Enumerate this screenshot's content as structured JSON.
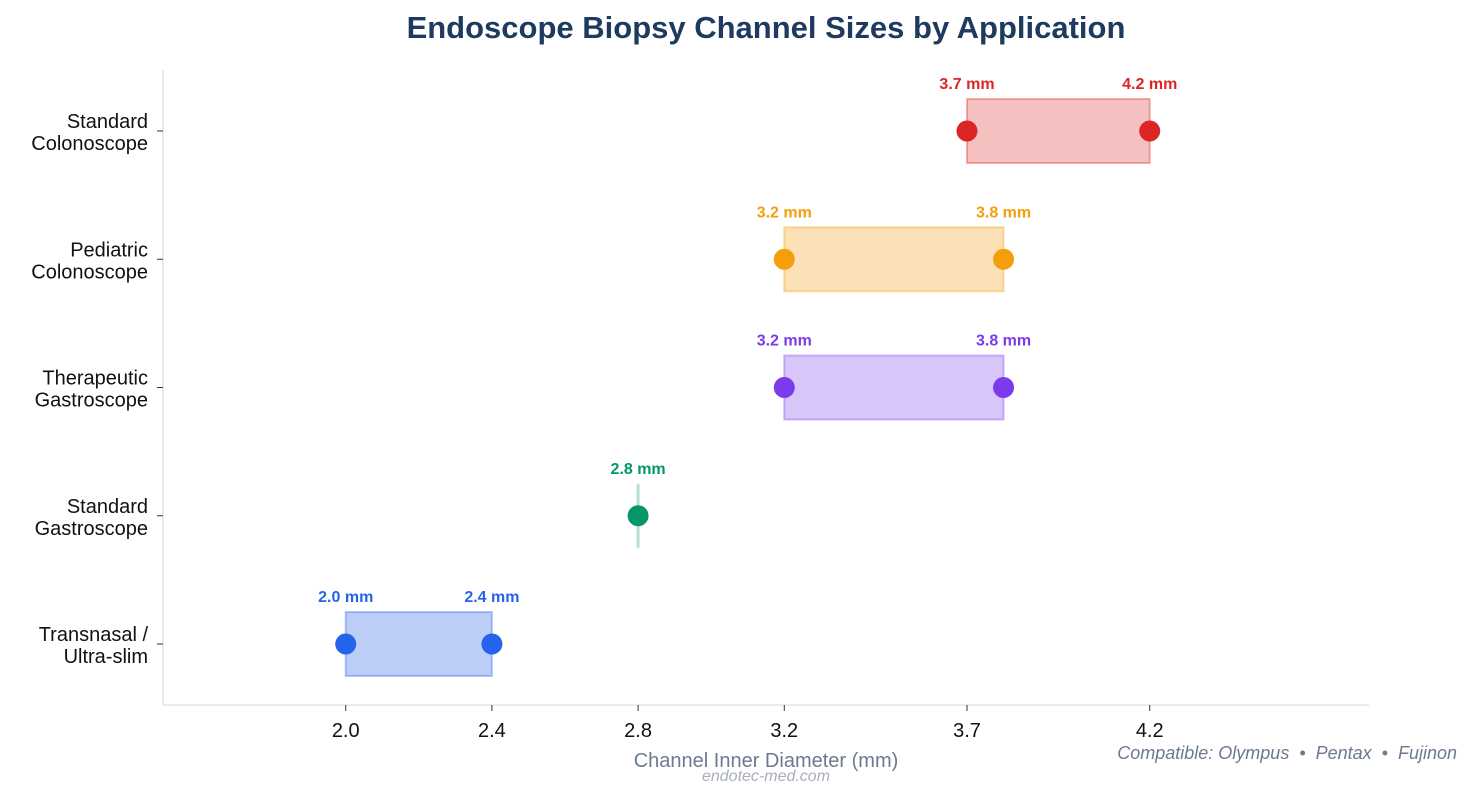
{
  "chart_data": {
    "type": "range-dot",
    "title": "Endoscope Biopsy Channel Sizes by Application",
    "xlabel": "Channel Inner Diameter (mm)",
    "ylabel": "",
    "xlim": [
      1.5,
      4.8
    ],
    "xticks": [
      2.0,
      2.4,
      2.8,
      3.2,
      3.7,
      4.2
    ],
    "xtick_labels": [
      "2.0",
      "2.4",
      "2.8",
      "3.2",
      "3.7",
      "4.2"
    ],
    "grid": false,
    "categories": [
      {
        "label": [
          "Transnasal /",
          "Ultra-slim"
        ],
        "min": 2.0,
        "max": 2.4,
        "color": "#2563eb",
        "fill": "#bccdf8",
        "labels": [
          "2.0 mm",
          "2.4 mm"
        ]
      },
      {
        "label": [
          "Standard",
          "Gastroscope"
        ],
        "min": 2.8,
        "max": 2.8,
        "color": "#059669",
        "fill": "#b5e0d2",
        "labels": [
          "2.8 mm"
        ]
      },
      {
        "label": [
          "Therapeutic",
          "Gastroscope"
        ],
        "min": 3.2,
        "max": 3.8,
        "color": "#7c3aed",
        "fill": "#d8c5f9",
        "labels": [
          "3.2 mm",
          "3.8 mm"
        ]
      },
      {
        "label": [
          "Pediatric",
          "Colonoscope"
        ],
        "min": 3.2,
        "max": 3.8,
        "color": "#f59e0b",
        "fill": "#fce0b6",
        "labels": [
          "3.2 mm",
          "3.8 mm"
        ]
      },
      {
        "label": [
          "Standard",
          "Colonoscope"
        ],
        "min": 3.7,
        "max": 4.2,
        "color": "#dc2626",
        "fill": "#f4c0c0",
        "labels": [
          "3.7 mm",
          "4.2 mm"
        ]
      }
    ]
  },
  "footer": {
    "compatible": "Compatible: Olympus  •  Pentax  •  Fujinon",
    "watermark": "endotec-med.com"
  }
}
